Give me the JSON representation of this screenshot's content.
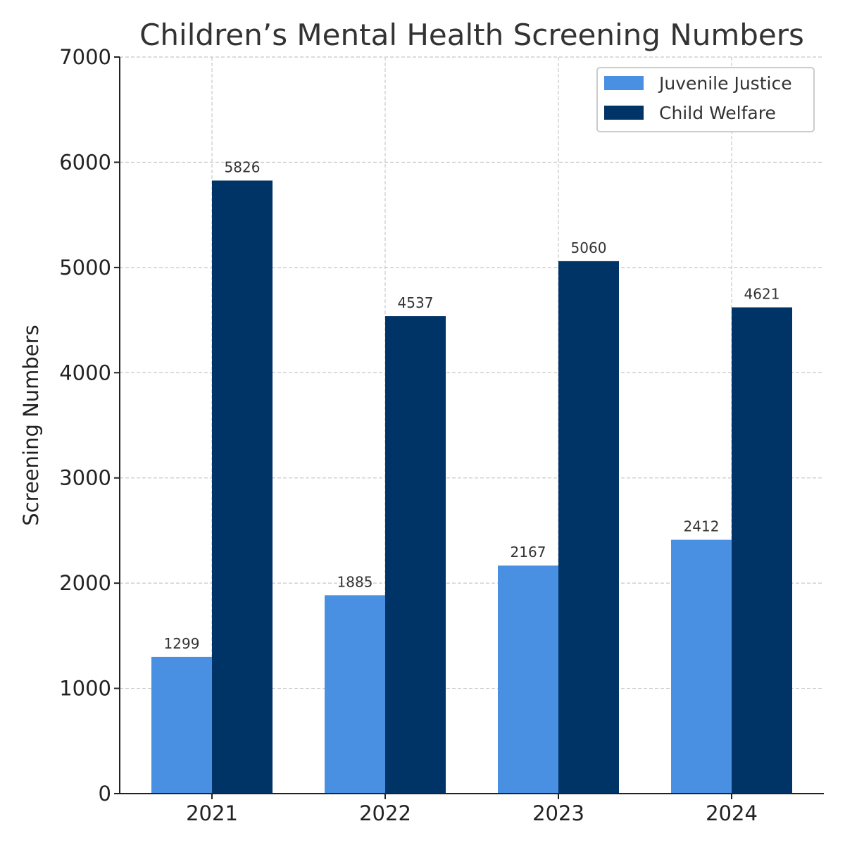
{
  "chart_data": {
    "type": "bar",
    "title": "Children’s Mental Health Screening Numbers",
    "xlabel": "",
    "ylabel": "Screening Numbers",
    "categories": [
      "2021",
      "2022",
      "2023",
      "2024"
    ],
    "series": [
      {
        "name": "Juvenile Justice",
        "color": "#4A90E2",
        "values": [
          1299,
          1885,
          2167,
          2412
        ]
      },
      {
        "name": "Child Welfare",
        "color": "#003366",
        "values": [
          5826,
          4537,
          5060,
          4621
        ]
      }
    ],
    "ylim": [
      0,
      7000
    ],
    "yticks": [
      0,
      1000,
      2000,
      3000,
      4000,
      5000,
      6000,
      7000
    ],
    "grid": true,
    "legend_position": "top-right"
  }
}
